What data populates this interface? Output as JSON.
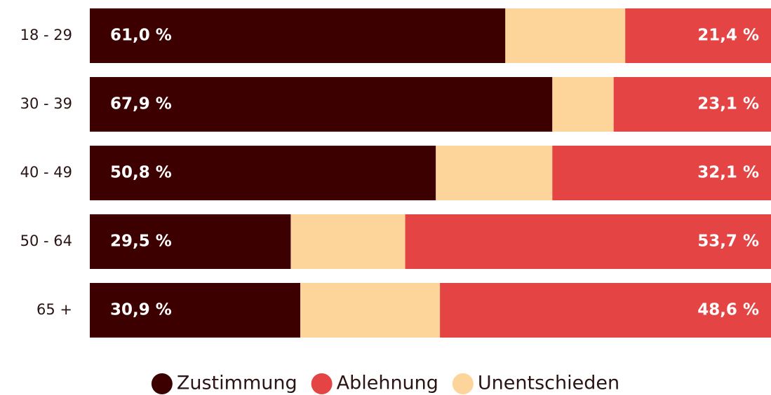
{
  "chart_data": {
    "type": "stacked-bar-horizontal",
    "categories": [
      "18 - 29",
      "30 - 39",
      "40 - 49",
      "50 - 64",
      "65 +"
    ],
    "series": [
      {
        "name": "Zustimmung",
        "color": "#3d0000",
        "values": [
          61.0,
          67.9,
          50.8,
          29.5,
          30.9
        ],
        "value_labels": [
          "61,0 %",
          "67,9 %",
          "50,8 %",
          "29,5 %",
          "30,9 %"
        ]
      },
      {
        "name": "Ablehnung",
        "color": "#e54444",
        "values": [
          21.4,
          23.1,
          32.1,
          53.7,
          48.6
        ],
        "value_labels": [
          "21,4 %",
          "23,1 %",
          "32,1 %",
          "53,7 %",
          "48,6 %"
        ]
      },
      {
        "name": "Unentschieden",
        "color": "#fdd49a",
        "values": [
          17.6,
          9.0,
          17.1,
          16.8,
          20.5
        ]
      }
    ],
    "legend": "bottom"
  }
}
